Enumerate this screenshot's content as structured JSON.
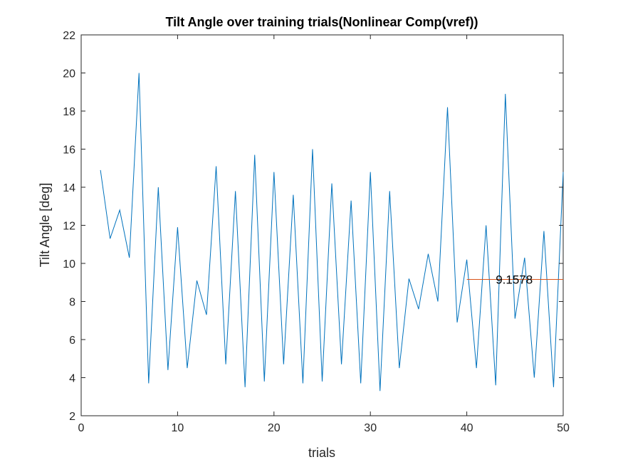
{
  "chart_data": {
    "type": "line",
    "title": "Tilt Angle over training trials(Nonlinear Comp(vref))",
    "xlabel": "trials",
    "ylabel": "Tilt Angle [deg]",
    "xlim": [
      0,
      50
    ],
    "ylim": [
      2,
      22
    ],
    "xticks": [
      0,
      10,
      20,
      30,
      40,
      50
    ],
    "yticks": [
      2,
      4,
      6,
      8,
      10,
      12,
      14,
      16,
      18,
      20,
      22
    ],
    "grid": false,
    "series": [
      {
        "color": "#0072BD",
        "x": [
          2,
          3,
          4,
          5,
          6,
          7,
          8,
          9,
          10,
          11,
          12,
          13,
          14,
          15,
          16,
          17,
          18,
          19,
          20,
          21,
          22,
          23,
          24,
          25,
          26,
          27,
          28,
          29,
          30,
          31,
          32,
          33,
          34,
          35,
          36,
          37,
          38,
          39,
          40,
          41,
          42,
          43,
          44,
          45,
          46,
          47,
          48,
          49,
          50
        ],
        "y": [
          14.9,
          11.3,
          12.8,
          10.3,
          20.0,
          3.7,
          14.0,
          4.4,
          11.9,
          4.5,
          9.1,
          7.3,
          15.1,
          4.7,
          13.8,
          3.5,
          15.7,
          3.8,
          14.8,
          4.7,
          13.6,
          3.7,
          16.0,
          3.8,
          14.2,
          4.7,
          13.3,
          3.7,
          14.8,
          3.3,
          13.8,
          4.5,
          9.2,
          7.6,
          10.5,
          8.0,
          18.2,
          6.9,
          10.2,
          4.5,
          12.0,
          3.6,
          18.9,
          7.1,
          10.3,
          4.0,
          11.7,
          3.5,
          14.8
        ]
      },
      {
        "color": "#D95319",
        "x": [
          40,
          50
        ],
        "y": [
          9.1578,
          9.1578
        ]
      }
    ],
    "annotations": [
      {
        "text": "9.1578",
        "x": 43,
        "y": 9.1578
      }
    ]
  }
}
